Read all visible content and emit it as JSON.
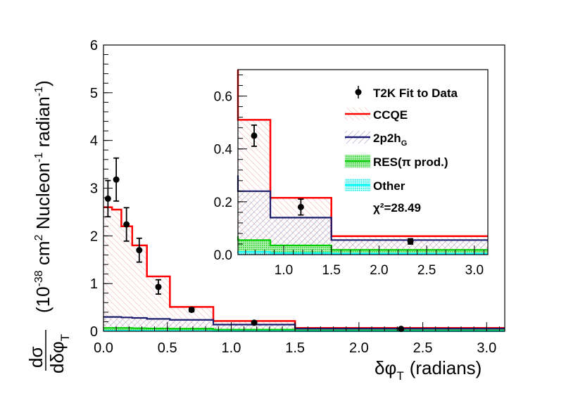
{
  "chart_data": {
    "type": "histogram",
    "xlabel_symbol": "δφ",
    "xlabel_sub": "T",
    "xlabel_unit": "(radians)",
    "ylabel_frac_num": "dσ",
    "ylabel_frac_den": "dδφ",
    "ylabel_frac_den_sub": "T",
    "ylabel_units_a": "(10",
    "ylabel_units_exp1": "-38",
    "ylabel_units_b": " cm",
    "ylabel_units_exp2": "2",
    "ylabel_units_c": " Nucleon",
    "ylabel_units_exp3": "-1",
    "ylabel_units_d": " radian",
    "ylabel_units_exp4": "-1",
    "ylabel_units_e": ")",
    "xlim": [
      0,
      3.14159
    ],
    "ylim": [
      0,
      6
    ],
    "xticks": [
      "0.0",
      "0.5",
      "1.0",
      "1.5",
      "2.0",
      "2.5",
      "3.0"
    ],
    "yticks": [
      "0",
      "1",
      "2",
      "3",
      "4",
      "5",
      "6"
    ],
    "bin_edges": [
      0,
      0.067,
      0.14,
      0.225,
      0.34,
      0.52,
      0.86,
      1.5,
      3.14159
    ],
    "series": [
      {
        "name": "CCQE",
        "color": "#ff0000",
        "fill": "hatch-red",
        "values": [
          2.6,
          2.55,
          2.2,
          1.8,
          1.15,
          0.51,
          0.215,
          0.07
        ]
      },
      {
        "name": "2p2h",
        "name_sub": "G",
        "color": "#1a1a6e",
        "fill": "hatch-blue",
        "values": [
          0.3,
          0.3,
          0.29,
          0.28,
          0.26,
          0.24,
          0.14,
          0.055
        ]
      },
      {
        "name": "RES(π prod.)",
        "color": "#00cc00",
        "fill": "dots-green",
        "values": [
          0.07,
          0.07,
          0.07,
          0.065,
          0.06,
          0.055,
          0.035,
          0.018
        ]
      },
      {
        "name": "Other",
        "color": "#00ffff",
        "fill": "dots-cyan",
        "values": [
          0.012,
          0.012,
          0.012,
          0.012,
          0.01,
          0.01,
          0.006,
          0.004
        ]
      }
    ],
    "data_points": {
      "name": "T2K Fit to Data",
      "x": [
        0.035,
        0.1,
        0.18,
        0.28,
        0.43,
        0.69,
        1.18,
        2.33
      ],
      "y": [
        2.78,
        3.18,
        2.24,
        1.7,
        0.93,
        0.45,
        0.18,
        0.05
      ],
      "yerr": [
        0.38,
        0.45,
        0.35,
        0.25,
        0.15,
        0.04,
        0.03,
        0.01
      ]
    },
    "chi2_text": "χ²=28.49",
    "inset": {
      "xlim": [
        0.52,
        3.14159
      ],
      "ylim": [
        0,
        0.7
      ],
      "xticks": [
        "1.0",
        "1.5",
        "2.0",
        "2.5",
        "3.0"
      ],
      "yticks": [
        "0.0",
        "0.2",
        "0.4",
        "0.6"
      ]
    }
  }
}
